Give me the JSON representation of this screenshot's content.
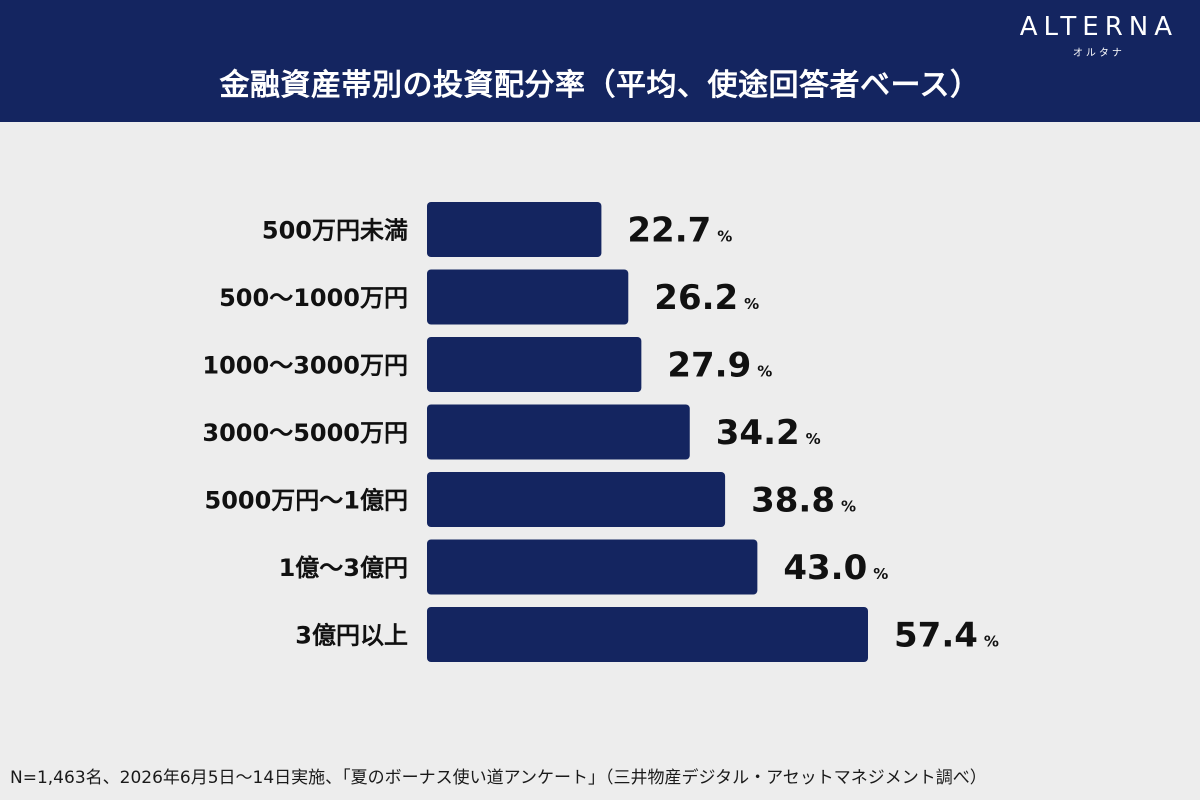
{
  "header": {
    "title": "金融資産帯別の投資配分率（平均、使途回答者ベース）",
    "logo_name": "ALTERNA",
    "logo_sub": "オルタナ"
  },
  "colors": {
    "header_bg": "#142560",
    "bar": "#142560",
    "background": "#ededed"
  },
  "chart_data": {
    "type": "bar",
    "orientation": "horizontal",
    "categories": [
      "500万円未満",
      "500〜1000万円",
      "1000〜3000万円",
      "3000〜5000万円",
      "5000万円〜1億円",
      "1億〜3億円",
      "3億円以上"
    ],
    "values": [
      22.7,
      26.2,
      27.9,
      34.2,
      38.8,
      43.0,
      57.4
    ],
    "value_labels": [
      "22.7",
      "26.2",
      "27.9",
      "34.2",
      "38.8",
      "43.0",
      "57.4"
    ],
    "unit": "%",
    "title": "金融資産帯別の投資配分率（平均、使途回答者ベース）",
    "xlim": [
      0,
      57.4
    ],
    "grid": false,
    "legend": "none"
  },
  "footnote": "N=1,463名、2026年6月5日〜14日実施、「夏のボーナス使い道アンケート」（三井物産デジタル・アセットマネジメント調べ）"
}
